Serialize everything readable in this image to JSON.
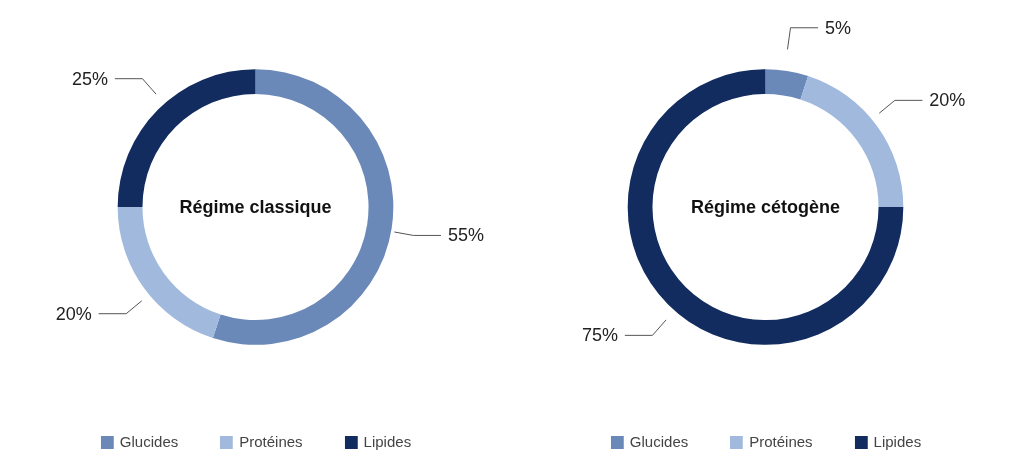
{
  "chart_data": [
    {
      "type": "donut",
      "title": "Régime classique",
      "categories": [
        "Glucides",
        "Protéines",
        "Lipides"
      ],
      "values": [
        55,
        20,
        25
      ],
      "colors": [
        "#6a88b8",
        "#a0b9dc",
        "#132c60"
      ],
      "value_labels": [
        "55%",
        "20%",
        "25%"
      ],
      "legend": "bottom"
    },
    {
      "type": "donut",
      "title": "Régime cétogène",
      "categories": [
        "Glucides",
        "Protéines",
        "Lipides"
      ],
      "values": [
        5,
        20,
        75
      ],
      "colors": [
        "#6a88b8",
        "#a0b9dc",
        "#132c60"
      ],
      "value_labels": [
        "5%",
        "20%",
        "75%"
      ],
      "legend": "bottom"
    }
  ]
}
